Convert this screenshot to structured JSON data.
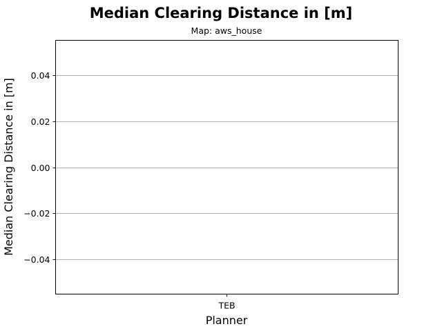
{
  "chart_data": {
    "type": "bar",
    "title": "Median Clearing Distance in [m]",
    "subtitle": "Map: aws_house",
    "xlabel": "Planner",
    "ylabel": "Median Clearing Distance in [m]",
    "categories": [
      "TEB"
    ],
    "values": [
      0
    ],
    "ylim": [
      -0.055,
      0.055
    ],
    "yticks": [
      -0.04,
      -0.02,
      0.0,
      0.02,
      0.04
    ],
    "ytick_labels": [
      "−0.04",
      "−0.02",
      "0.00",
      "0.02",
      "0.04"
    ],
    "grid": "horizontal",
    "colors": {
      "grid": "#b0b0b0",
      "axes": "#000000",
      "background": "#ffffff"
    }
  }
}
